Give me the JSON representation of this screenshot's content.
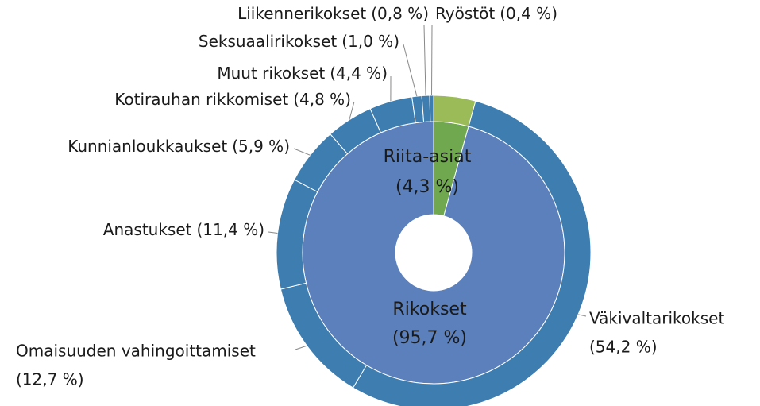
{
  "chart_data": {
    "type": "sunburst",
    "rings": [
      {
        "categories": [
          "Riita-asiat",
          "Rikokset"
        ],
        "values": [
          4.3,
          95.7
        ],
        "value_labels": [
          "(4,3 %)",
          "(95,7 %)"
        ],
        "colors": [
          "#6fa84f",
          "#5b80bb"
        ]
      },
      {
        "categories": [
          null,
          "Väkivaltarikokset",
          "Omaisuuden vahingoittamiset",
          "Anastukset",
          "Kunnianloukkaukset",
          "Kotirauhan rikkomiset",
          "Muut rikokset",
          "Seksuaalirikokset",
          "Liikennerikokset",
          "Ryöstöt"
        ],
        "values": [
          4.3,
          54.2,
          12.7,
          11.4,
          5.9,
          4.8,
          4.4,
          1.0,
          0.8,
          0.4
        ],
        "value_labels": [
          null,
          "(54,2 %)",
          "(12,7 %)",
          "(11,4 %)",
          "(5,9 %)",
          "(4,8 %)",
          "(4,4 %)",
          "(1,0 %)",
          "(0,8 %)",
          "(0,4 %)"
        ],
        "colors": [
          "#9bbb59",
          "#3d7db0",
          "#3d7db0",
          "#3d7db0",
          "#3d7db0",
          "#3d7db0",
          "#3d7db0",
          "#3d7db0",
          "#3d7db0",
          "#3d7db0"
        ]
      }
    ]
  }
}
